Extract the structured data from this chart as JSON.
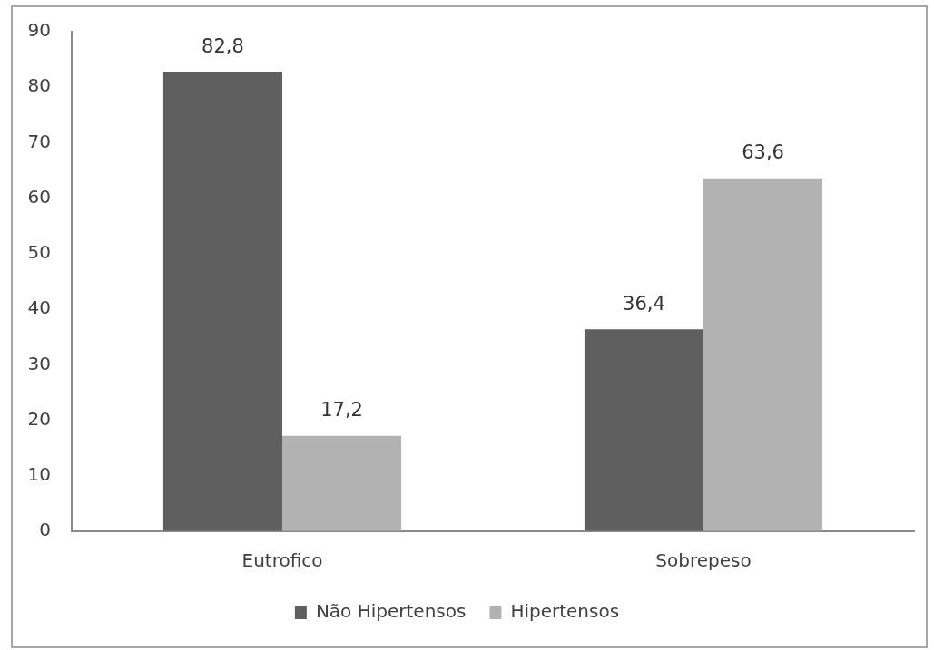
{
  "chart_data": {
    "type": "bar",
    "categories": [
      "Eutrofico",
      "Sobrepeso"
    ],
    "series": [
      {
        "name": "Não Hipertensos",
        "color": "#5f5f5f",
        "values": [
          82.8,
          36.4
        ],
        "value_labels": [
          "82,8",
          "36,4"
        ]
      },
      {
        "name": "Hipertensos",
        "color": "#b2b2b2",
        "values": [
          17.2,
          63.6
        ],
        "value_labels": [
          "17,2",
          "63,6"
        ]
      }
    ],
    "ylim": [
      0,
      90
    ],
    "yticks": [
      0,
      10,
      20,
      30,
      40,
      50,
      60,
      70,
      80,
      90
    ],
    "legend": "bottom"
  }
}
